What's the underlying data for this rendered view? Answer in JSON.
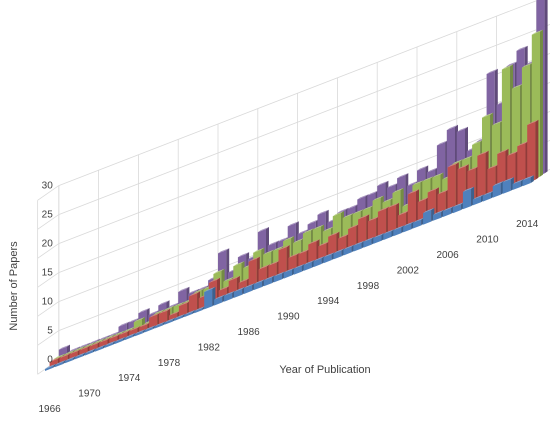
{
  "chart_data": {
    "type": "bar",
    "subtype": "3d-column",
    "title": "",
    "xlabel": "Year of Publication",
    "ylabel": "Number of Papers",
    "ylim": [
      0,
      30
    ],
    "y_ticks": [
      0,
      5,
      10,
      15,
      20,
      25,
      30
    ],
    "x_tick_labels": [
      "1966",
      "1970",
      "1974",
      "1978",
      "1982",
      "1986",
      "1990",
      "1994",
      "1998",
      "2002",
      "2006",
      "2010",
      "2014"
    ],
    "x": [
      1966,
      1967,
      1968,
      1969,
      1970,
      1971,
      1972,
      1973,
      1974,
      1975,
      1976,
      1977,
      1978,
      1979,
      1980,
      1981,
      1982,
      1983,
      1984,
      1985,
      1986,
      1987,
      1988,
      1989,
      1990,
      1991,
      1992,
      1993,
      1994,
      1995,
      1996,
      1997,
      1998,
      1999,
      2000,
      2001,
      2002,
      2003,
      2004,
      2005,
      2006,
      2007,
      2008,
      2009,
      2010,
      2011,
      2012,
      2013,
      2014
    ],
    "grid": true,
    "legend": "none",
    "series": [
      {
        "color": "#4f81bd",
        "values": [
          0,
          0,
          0,
          0,
          0,
          0,
          0,
          0,
          0,
          0,
          0,
          0,
          0,
          0,
          0,
          0,
          3,
          1,
          1,
          1,
          1,
          1,
          1,
          1,
          1,
          1,
          1,
          1,
          1,
          1,
          1,
          1,
          1,
          1,
          1,
          1,
          1,
          1,
          2,
          1,
          1,
          1,
          3,
          1,
          1,
          2,
          2,
          1,
          1
        ]
      },
      {
        "color": "#c0504d",
        "values": [
          1,
          1,
          1,
          1,
          1,
          1,
          1,
          1,
          1,
          1,
          2,
          2,
          1,
          2,
          3,
          2,
          4,
          2,
          3,
          2,
          5,
          3,
          3,
          5,
          3,
          3,
          4,
          3,
          4,
          3,
          4,
          5,
          4,
          5,
          5,
          3,
          6,
          4,
          5,
          4,
          8,
          7,
          6,
          8,
          5,
          7,
          6,
          7,
          10
        ]
      },
      {
        "color": "#9bbb59",
        "values": [
          1,
          1,
          1,
          1,
          1,
          1,
          1,
          1,
          2,
          1,
          2,
          2,
          2,
          2,
          3,
          3,
          5,
          3,
          5,
          4,
          6,
          5,
          5,
          6,
          5,
          6,
          6,
          5,
          7,
          6,
          6,
          6,
          7,
          6,
          7,
          4,
          7,
          7,
          7,
          6,
          8,
          8,
          10,
          14,
          12,
          21,
          17,
          20,
          25
        ]
      },
      {
        "color": "#8064a2",
        "values": [
          2,
          1,
          1,
          1,
          1,
          1,
          2,
          2,
          3,
          2,
          3,
          2,
          4,
          3,
          3,
          4,
          8,
          4,
          6,
          5,
          9,
          6,
          6,
          8,
          6,
          7,
          8,
          6,
          7,
          7,
          8,
          8,
          9,
          8,
          9,
          7,
          9,
          8,
          12,
          14,
          13,
          9,
          10,
          21,
          15,
          21,
          23,
          20,
          31
        ]
      }
    ]
  }
}
